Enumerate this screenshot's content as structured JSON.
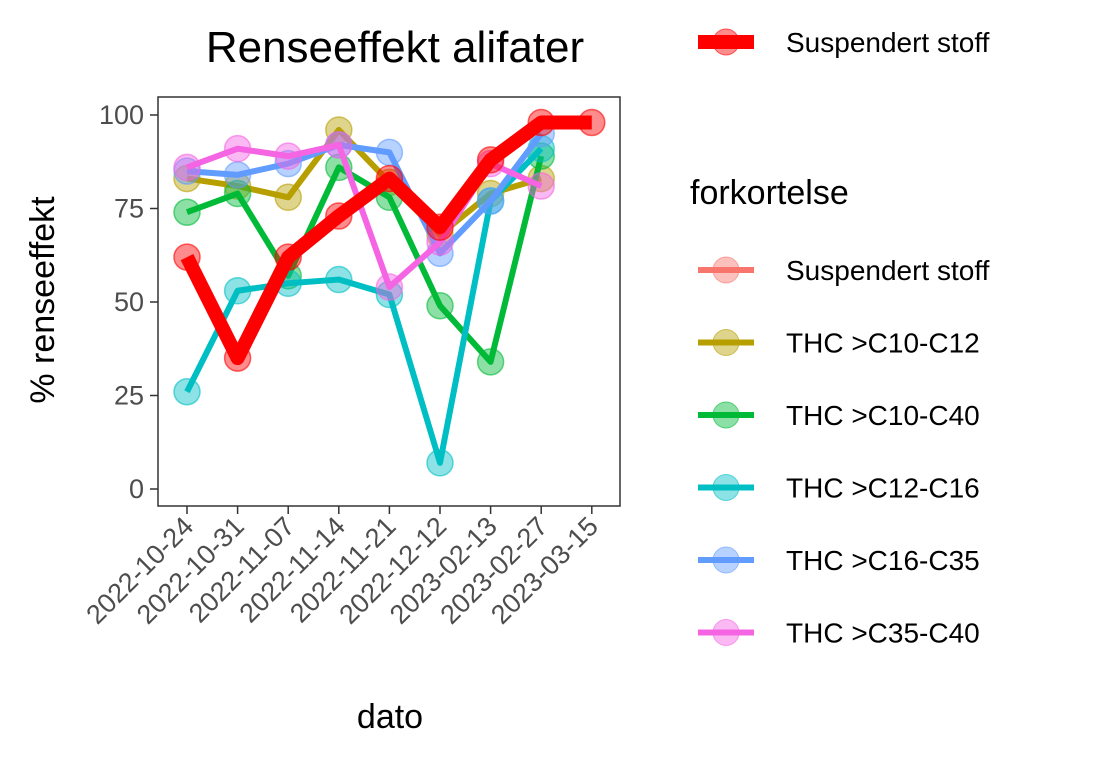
{
  "chart_data": {
    "type": "line",
    "title": "Renseeffekt alifater",
    "xlabel": "dato",
    "ylabel": "% renseeffekt",
    "x": [
      "2022-10-24",
      "2022-10-31",
      "2022-11-07",
      "2022-11-14",
      "2022-11-21",
      "2022-12-12",
      "2023-02-13",
      "2023-02-27",
      "2023-03-15"
    ],
    "yticks": [
      0,
      25,
      50,
      75,
      100
    ],
    "ylim": [
      -5,
      105
    ],
    "grid": false,
    "legend_placement": "right",
    "highlight_legend": {
      "label": "Suspendert stoff",
      "color": "#ff0000"
    },
    "legend_title": "forkortelse",
    "series": [
      {
        "name": "THC >C10-C12",
        "color": "#b79f00",
        "values": [
          83,
          81,
          78,
          96,
          82,
          68,
          79,
          83,
          null
        ]
      },
      {
        "name": "THC >C10-C40",
        "color": "#00ba38",
        "values": [
          74,
          79,
          57,
          86,
          78,
          49,
          34,
          89,
          null
        ]
      },
      {
        "name": "THC >C12-C16",
        "color": "#00bfc4",
        "values": [
          26,
          53,
          55,
          56,
          52,
          7,
          77,
          91,
          null
        ]
      },
      {
        "name": "THC >C16-C35",
        "color": "#619cff",
        "values": [
          85,
          84,
          87,
          92,
          90,
          63,
          77,
          95,
          null
        ]
      },
      {
        "name": "THC >C35-C40",
        "color": "#f564e3",
        "values": [
          86,
          91,
          89,
          92,
          54,
          66,
          87,
          81,
          null
        ]
      },
      {
        "name": "Suspendert stoff",
        "color": "#ff0000",
        "values": [
          62,
          35,
          62,
          73,
          83,
          70,
          88,
          98,
          98
        ]
      }
    ],
    "legend_entries": [
      {
        "label": "Suspendert stoff",
        "color": "#f8766d"
      },
      {
        "label": "THC >C10-C12",
        "color": "#b79f00"
      },
      {
        "label": "THC >C10-C40",
        "color": "#00ba38"
      },
      {
        "label": "THC >C12-C16",
        "color": "#00bfc4"
      },
      {
        "label": "THC >C16-C35",
        "color": "#619cff"
      },
      {
        "label": "THC >C35-C40",
        "color": "#f564e3"
      }
    ]
  }
}
